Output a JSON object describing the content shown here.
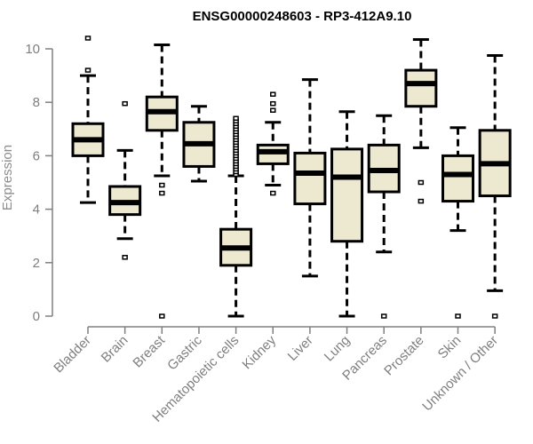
{
  "chart_data": {
    "type": "box",
    "title": "ENSG00000248603 - RP3-412A9.10",
    "xlabel": "",
    "ylabel": "Expression",
    "ylim": [
      0,
      10
    ],
    "yticks": [
      "0",
      "2",
      "4",
      "6",
      "8",
      "10"
    ],
    "grid": false,
    "colors": {
      "box_fill": "#EDE8D0",
      "stroke": "#000000",
      "axis": "#808080",
      "tick_text": "#7f7f7f"
    },
    "categories": [
      "Bladder",
      "Brain",
      "Breast",
      "Gastric",
      "Hematopoietic cells",
      "Kidney",
      "Liver",
      "Lung",
      "Pancreas",
      "Prostate",
      "Skin",
      "Unknown / Other"
    ],
    "boxes": [
      {
        "name": "Bladder",
        "whisker_low": 4.25,
        "q1": 6.0,
        "median": 6.6,
        "q3": 7.2,
        "whisker_high": 9.0,
        "outliers": [
          10.4,
          9.2
        ]
      },
      {
        "name": "Brain",
        "whisker_low": 2.9,
        "q1": 3.8,
        "median": 4.25,
        "q3": 4.85,
        "whisker_high": 6.2,
        "outliers": [
          7.95,
          2.2
        ]
      },
      {
        "name": "Breast",
        "whisker_low": 5.25,
        "q1": 6.95,
        "median": 7.65,
        "q3": 8.2,
        "whisker_high": 10.15,
        "outliers": [
          4.9,
          4.6,
          0
        ]
      },
      {
        "name": "Gastric",
        "whisker_low": 5.05,
        "q1": 5.6,
        "median": 6.45,
        "q3": 7.25,
        "whisker_high": 7.85,
        "outliers": []
      },
      {
        "name": "Hematopoietic cells",
        "whisker_low": 0,
        "q1": 1.9,
        "median": 2.55,
        "q3": 3.25,
        "whisker_high": 5.25,
        "outliers": [
          5.3,
          5.4,
          5.5,
          5.6,
          5.7,
          5.8,
          5.9,
          6.0,
          6.1,
          6.2,
          6.3,
          6.4,
          6.5,
          6.6,
          6.7,
          6.8,
          6.9,
          7.0,
          7.1,
          7.2,
          7.3,
          7.4
        ]
      },
      {
        "name": "Kidney",
        "whisker_low": 4.9,
        "q1": 5.7,
        "median": 6.15,
        "q3": 6.4,
        "whisker_high": 7.25,
        "outliers": [
          8.3,
          7.95,
          7.7,
          4.6
        ]
      },
      {
        "name": "Liver",
        "whisker_low": 1.5,
        "q1": 4.2,
        "median": 5.35,
        "q3": 6.1,
        "whisker_high": 8.85,
        "outliers": []
      },
      {
        "name": "Lung",
        "whisker_low": 0,
        "q1": 2.8,
        "median": 5.2,
        "q3": 6.25,
        "whisker_high": 7.65,
        "outliers": []
      },
      {
        "name": "Pancreas",
        "whisker_low": 2.4,
        "q1": 4.65,
        "median": 5.45,
        "q3": 6.4,
        "whisker_high": 7.5,
        "outliers": [
          0
        ]
      },
      {
        "name": "Prostate",
        "whisker_low": 6.3,
        "q1": 7.85,
        "median": 8.7,
        "q3": 9.2,
        "whisker_high": 10.35,
        "outliers": [
          5.0,
          4.3
        ]
      },
      {
        "name": "Skin",
        "whisker_low": 3.2,
        "q1": 4.3,
        "median": 5.3,
        "q3": 6.0,
        "whisker_high": 7.05,
        "outliers": [
          0
        ]
      },
      {
        "name": "Unknown / Other",
        "whisker_low": 0.95,
        "q1": 4.5,
        "median": 5.7,
        "q3": 6.95,
        "whisker_high": 9.75,
        "outliers": [
          0
        ]
      }
    ]
  }
}
